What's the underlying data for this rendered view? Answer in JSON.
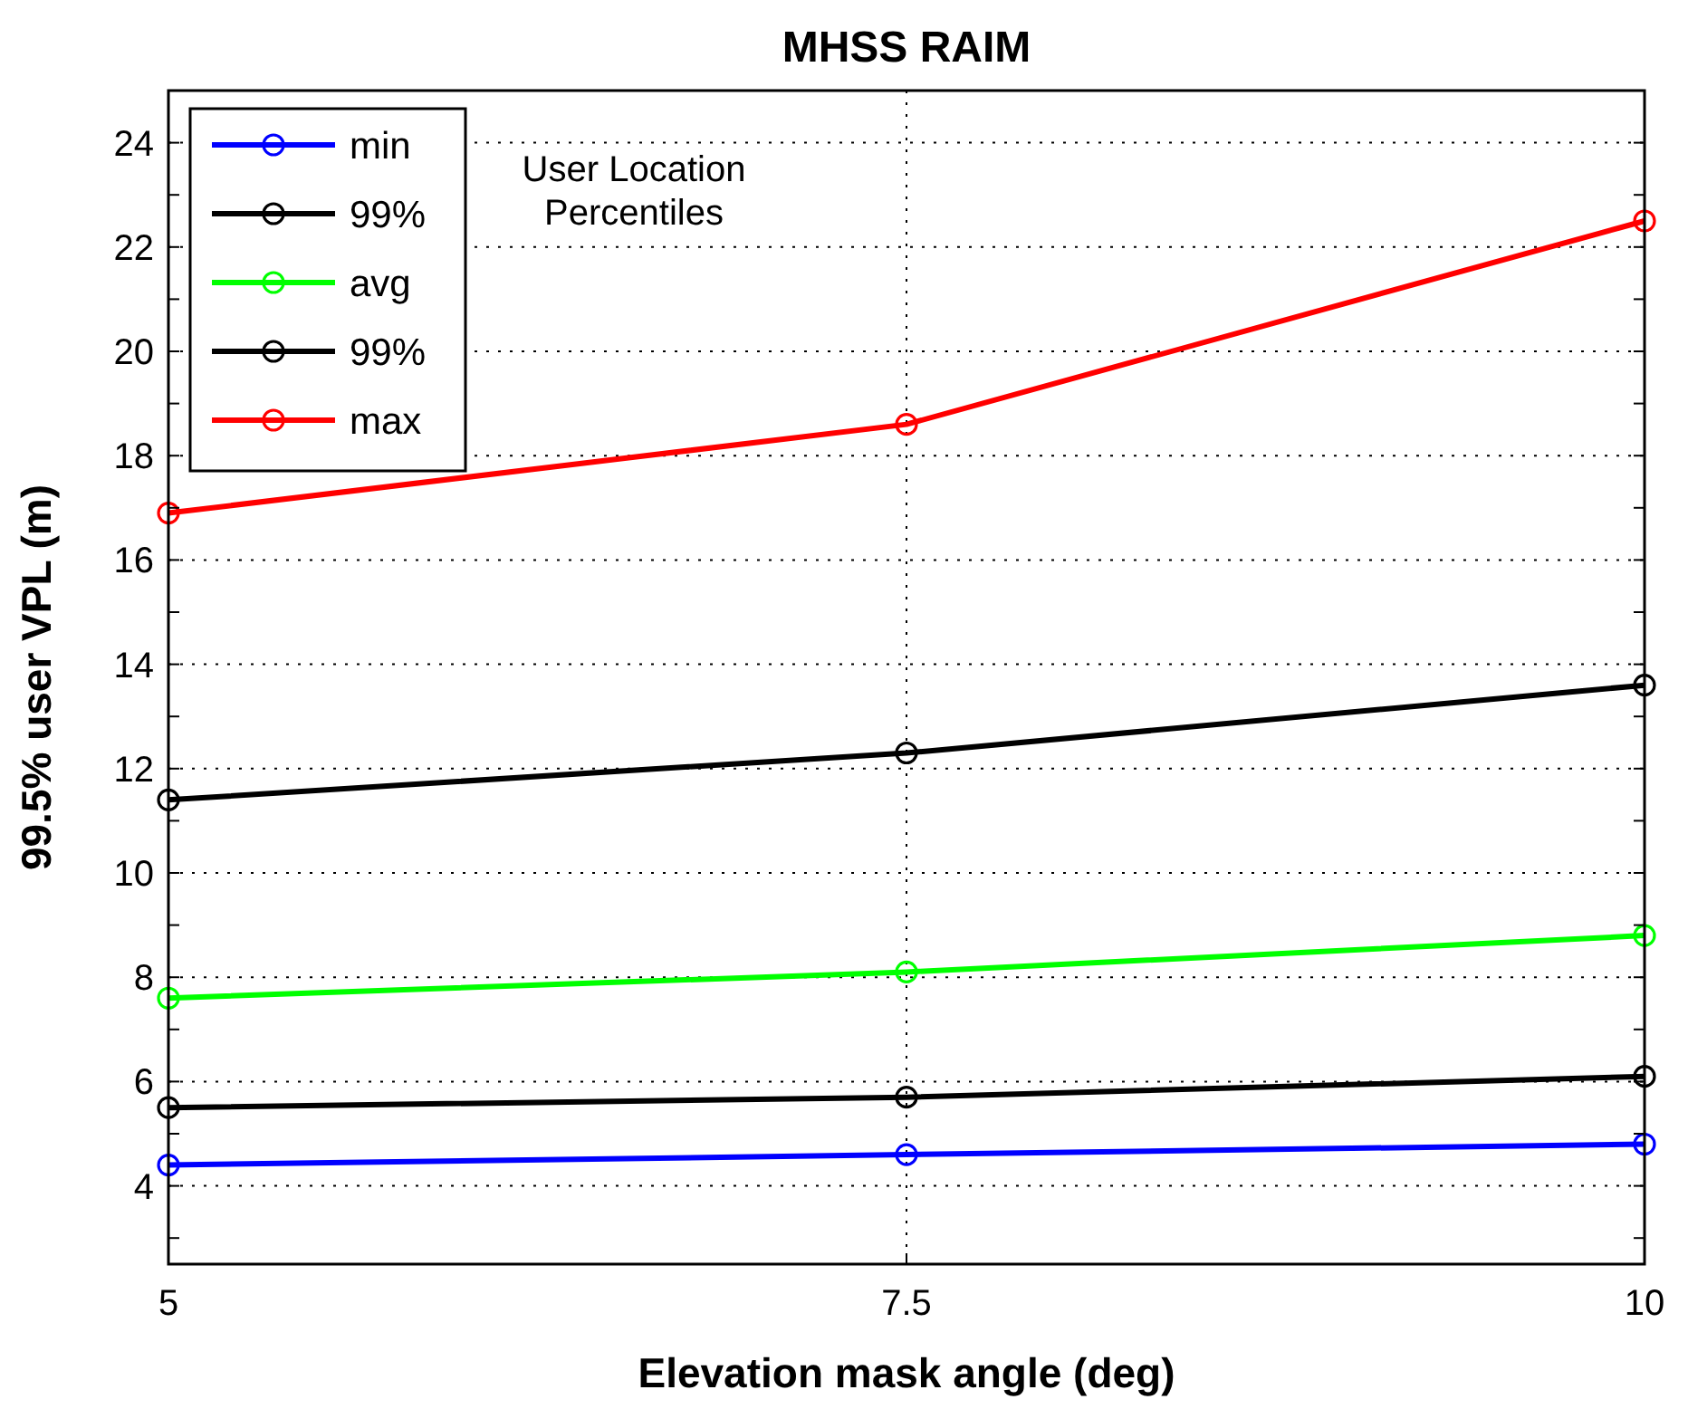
{
  "chart_data": {
    "type": "line",
    "title": "MHSS RAIM",
    "xlabel": "Elevation mask angle (deg)",
    "ylabel": "99.5% user VPL (m)",
    "x": [
      5,
      7.5,
      10
    ],
    "xlim": [
      5,
      10
    ],
    "xticks": [
      5,
      {
        "value": 7.5,
        "label": "7.5"
      },
      10
    ],
    "ylim": [
      2.5,
      25
    ],
    "yticks": [
      {
        "value": 3,
        "label": null
      },
      4,
      {
        "value": 5,
        "label": null
      },
      6,
      {
        "value": 7,
        "label": null
      },
      8,
      {
        "value": 9,
        "label": null
      },
      10,
      {
        "value": 11,
        "label": null
      },
      12,
      {
        "value": 13,
        "label": null
      },
      14,
      {
        "value": 15,
        "label": null
      },
      16,
      {
        "value": 17,
        "label": null
      },
      18,
      {
        "value": 19,
        "label": null
      },
      20,
      {
        "value": 21,
        "label": null
      },
      22,
      {
        "value": 23,
        "label": null
      },
      24
    ],
    "grid": true,
    "legend": "top left",
    "marker": "circle",
    "line_style": "solid",
    "legend_title": "User Location Percentiles",
    "series": [
      {
        "name": "min",
        "color": "#0000ff",
        "values": [
          4.4,
          4.6,
          4.8
        ]
      },
      {
        "name": "99%",
        "color": "#000000",
        "values": [
          5.5,
          5.7,
          6.1
        ]
      },
      {
        "name": "avg",
        "color": "#00ff00",
        "values": [
          7.6,
          8.1,
          8.8
        ]
      },
      {
        "name": "99%",
        "color": "#000000",
        "values": [
          11.4,
          12.3,
          13.6
        ]
      },
      {
        "name": "max",
        "color": "#ff0000",
        "values": [
          16.9,
          18.6,
          22.5
        ]
      }
    ]
  }
}
